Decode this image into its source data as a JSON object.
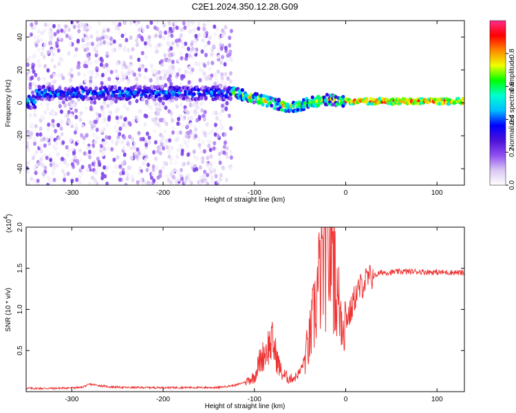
{
  "title": "C2E1.2024.350.12.28.G09",
  "colors": {
    "snr_line": "#ee3333",
    "spectrogram_background": "#ffffff",
    "colormap": [
      "#ffffff",
      "#d9c7f2",
      "#8f4ff0",
      "#4a12d8",
      "#0000ff",
      "#00bfff",
      "#00ffd0",
      "#00ff00",
      "#f0ff00",
      "#ff8800",
      "#ff0000",
      "#ff2d8a"
    ]
  },
  "chart_data": [
    {
      "type": "heatmap",
      "xlabel": "Height of straight line (km)",
      "ylabel": "Frequency (Hz)",
      "xlim": [
        -350,
        130
      ],
      "ylim": [
        -50,
        50
      ],
      "x_ticks": [
        -300,
        -200,
        -100,
        0,
        100
      ],
      "x_tick_labels": [
        "-300",
        "-200",
        "-100",
        "0",
        "100"
      ],
      "y_ticks": [
        -40,
        -20,
        0,
        20,
        40
      ],
      "y_tick_labels": [
        "-40",
        "-20",
        "0",
        "20",
        "40"
      ],
      "colorbar": {
        "label": "Normalized spectral amplitude",
        "range": [
          0,
          1
        ],
        "ticks": [
          0.0,
          0.2,
          0.4,
          0.6,
          0.8
        ],
        "tick_labels": [
          "0.0",
          "0.2",
          "0.4",
          "0.6",
          "0.8"
        ]
      },
      "ridge": [
        {
          "x": -340,
          "y": 6
        },
        {
          "x": -300,
          "y": 6
        },
        {
          "x": -250,
          "y": 6
        },
        {
          "x": -200,
          "y": 6
        },
        {
          "x": -150,
          "y": 6
        },
        {
          "x": -120,
          "y": 6
        },
        {
          "x": -100,
          "y": 3
        },
        {
          "x": -80,
          "y": 0
        },
        {
          "x": -60,
          "y": -3
        },
        {
          "x": -40,
          "y": 0
        },
        {
          "x": -20,
          "y": 2
        },
        {
          "x": 0,
          "y": 1
        },
        {
          "x": 50,
          "y": 1
        },
        {
          "x": 130,
          "y": 1
        }
      ],
      "noise_region_x": [
        -350,
        -125
      ]
    },
    {
      "type": "line",
      "xlabel": "Height of straight line (km)",
      "ylabel": "SNR (10 * v/v)",
      "y_multiplier": "(x10",
      "y_multiplier_exponent": "4",
      "y_multiplier_close": ")",
      "xlim": [
        -350,
        130
      ],
      "ylim": [
        0,
        2.0
      ],
      "x_ticks": [
        -300,
        -200,
        -100,
        0,
        100
      ],
      "x_tick_labels": [
        "-300",
        "-200",
        "-100",
        "0",
        "100"
      ],
      "y_ticks": [
        0.5,
        1.0,
        1.5,
        2.0
      ],
      "y_tick_labels": [
        "0.5",
        "1.0",
        "1.5",
        "2.0"
      ],
      "series": [
        {
          "x": [
            -350,
            -320,
            -290,
            -280,
            -260,
            -240,
            -200,
            -160,
            -140,
            -120,
            -110,
            -100,
            -95,
            -90,
            -85,
            -80,
            -75,
            -70,
            -65,
            -60,
            -55,
            -50,
            -45,
            -40,
            -35,
            -30,
            -25,
            -20,
            -15,
            -10,
            -5,
            0,
            5,
            10,
            15,
            20,
            25,
            30,
            35,
            40,
            50,
            60,
            80,
            100,
            120,
            130
          ],
          "y": [
            0.04,
            0.04,
            0.05,
            0.09,
            0.06,
            0.05,
            0.05,
            0.05,
            0.05,
            0.08,
            0.12,
            0.18,
            0.35,
            0.45,
            0.55,
            0.6,
            0.38,
            0.22,
            0.18,
            0.16,
            0.18,
            0.24,
            0.4,
            0.6,
            0.9,
            1.3,
            1.55,
            1.6,
            1.7,
            1.15,
            0.95,
            0.9,
            0.95,
            1.15,
            1.25,
            1.33,
            1.37,
            1.4,
            1.43,
            1.45,
            1.45,
            1.46,
            1.46,
            1.45,
            1.45,
            1.44
          ]
        }
      ]
    }
  ]
}
